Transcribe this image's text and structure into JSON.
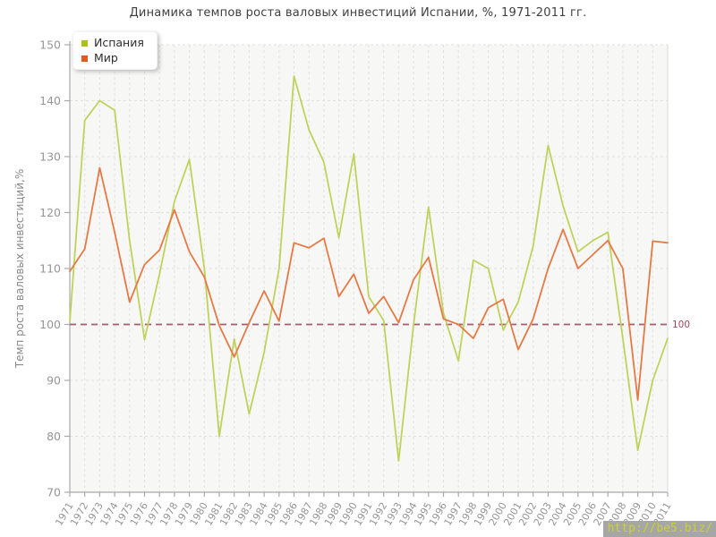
{
  "title": "Динамика темпов роста валовых инвестиций Испании, %, 1971-2011 гг.",
  "y_axis_title": "Темп роста валовых инвестиций,%",
  "watermark": "http://be5.biz/",
  "colors": {
    "plot_bg": "#f7f7f6",
    "grid": "#e1e1e1",
    "axis": "#a9a9a9",
    "axis_right": "#d9d9d9",
    "tick_text": "#969696",
    "title_text": "#3f3f3f",
    "reference_line": "#a85c6e",
    "reference_label": "#99485c",
    "watermark_bg": "#a6a6a6",
    "watermark_text": "#cbd32b"
  },
  "chart_data": {
    "type": "line",
    "title": "Динамика темпов роста валовых инвестиций Испании, %, 1971-2011 гг.",
    "xlabel": "",
    "ylabel": "Темп роста валовых инвестиций,%",
    "ylim": [
      70,
      150
    ],
    "yticks": [
      150,
      140,
      130,
      120,
      110,
      100,
      90,
      80,
      70
    ],
    "grid": true,
    "grid_style": "dashed",
    "legend_position": "top-left",
    "reference_line": 100,
    "reference_line_label": "100",
    "x": [
      1971,
      1972,
      1973,
      1974,
      1975,
      1976,
      1977,
      1978,
      1979,
      1980,
      1981,
      1982,
      1983,
      1984,
      1985,
      1986,
      1987,
      1988,
      1989,
      1990,
      1991,
      1992,
      1993,
      1994,
      1995,
      1996,
      1997,
      1998,
      1999,
      2000,
      2001,
      2002,
      2003,
      2004,
      2005,
      2006,
      2007,
      2008,
      2009,
      2010,
      2011
    ],
    "series": [
      {
        "name": "Испания",
        "color": "#c0d25c",
        "marker_color": "#a9c213",
        "values": [
          100.5,
          136.5,
          140.0,
          138.3,
          115.0,
          97.3,
          109.0,
          122.0,
          129.5,
          110.0,
          80.0,
          97.4,
          84.0,
          95.0,
          110.0,
          144.4,
          134.8,
          129.0,
          115.5,
          130.5,
          105.0,
          100.7,
          75.6,
          100.0,
          121.0,
          102.0,
          93.5,
          111.5,
          110.0,
          99.0,
          104.0,
          114.0,
          132.0,
          121.2,
          113.0,
          115.0,
          116.5,
          97.5,
          77.5,
          90.0,
          97.5
        ]
      },
      {
        "name": "Мир",
        "color": "#e57a45",
        "marker_color": "#e2591d",
        "values": [
          109.5,
          113.5,
          128.0,
          116.5,
          104.0,
          110.7,
          113.3,
          120.5,
          113.0,
          108.5,
          99.8,
          94.2,
          100.3,
          106.0,
          100.6,
          114.6,
          113.7,
          115.4,
          105.0,
          109.0,
          102.0,
          105.0,
          100.3,
          108.0,
          112.0,
          101.0,
          100.0,
          97.5,
          103.0,
          104.5,
          95.5,
          101.0,
          110.0,
          117.0,
          110.0,
          112.5,
          115.0,
          110.0,
          86.5,
          114.9,
          114.6
        ]
      }
    ]
  }
}
